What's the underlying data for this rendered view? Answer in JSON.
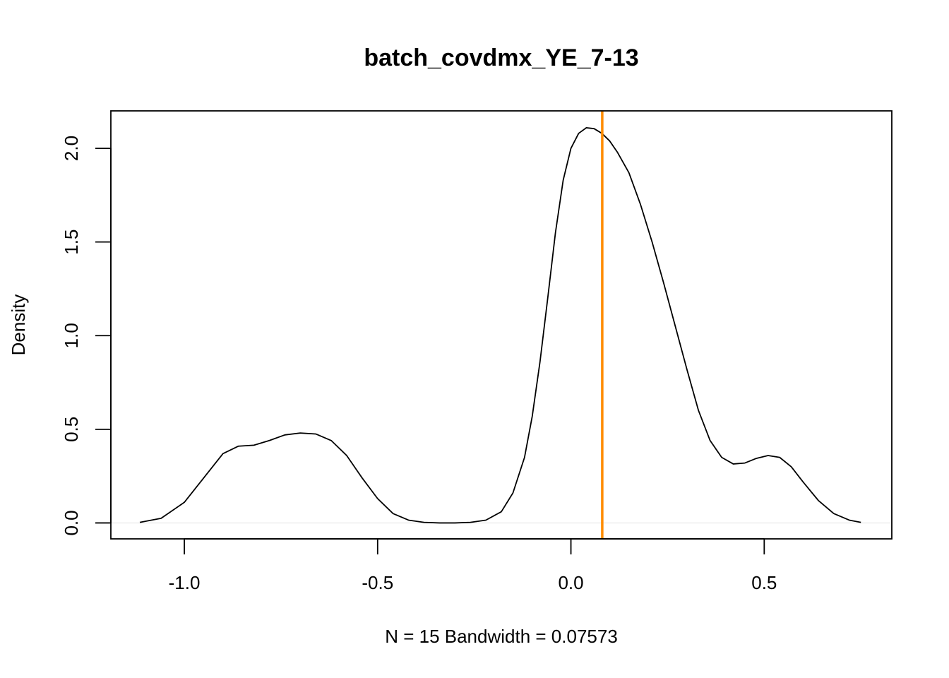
{
  "chart_data": {
    "type": "line",
    "title": "batch_covdmx_YE_7-13",
    "xlabel": "N = 15   Bandwidth = 0.07573",
    "ylabel": "Density",
    "xlim": [
      -1.19,
      0.83
    ],
    "ylim": [
      -0.085,
      2.2
    ],
    "x_ticks": [
      -1.0,
      -0.5,
      0.0,
      0.5
    ],
    "x_tick_labels": [
      "-1.0",
      "-0.5",
      "0.0",
      "0.5"
    ],
    "y_ticks": [
      0.0,
      0.5,
      1.0,
      1.5,
      2.0
    ],
    "y_tick_labels": [
      "0.0",
      "0.5",
      "1.0",
      "1.5",
      "2.0"
    ],
    "series": [
      {
        "color": "#000000",
        "x": [
          -1.115,
          -1.06,
          -1.0,
          -0.95,
          -0.9,
          -0.86,
          -0.82,
          -0.78,
          -0.74,
          -0.7,
          -0.66,
          -0.62,
          -0.58,
          -0.54,
          -0.5,
          -0.46,
          -0.42,
          -0.38,
          -0.34,
          -0.3,
          -0.26,
          -0.22,
          -0.18,
          -0.15,
          -0.12,
          -0.1,
          -0.08,
          -0.06,
          -0.04,
          -0.02,
          0.0,
          0.02,
          0.04,
          0.06,
          0.08,
          0.1,
          0.12,
          0.15,
          0.18,
          0.21,
          0.24,
          0.27,
          0.3,
          0.33,
          0.36,
          0.39,
          0.42,
          0.45,
          0.48,
          0.51,
          0.54,
          0.57,
          0.6,
          0.64,
          0.68,
          0.72,
          0.75
        ],
        "y": [
          0.003,
          0.025,
          0.11,
          0.24,
          0.37,
          0.41,
          0.415,
          0.44,
          0.47,
          0.48,
          0.475,
          0.44,
          0.36,
          0.24,
          0.13,
          0.05,
          0.015,
          0.003,
          0.0,
          0.0,
          0.003,
          0.015,
          0.06,
          0.16,
          0.35,
          0.57,
          0.86,
          1.2,
          1.55,
          1.83,
          2.0,
          2.08,
          2.11,
          2.105,
          2.08,
          2.04,
          1.98,
          1.87,
          1.7,
          1.5,
          1.28,
          1.05,
          0.82,
          0.6,
          0.44,
          0.35,
          0.315,
          0.32,
          0.345,
          0.36,
          0.35,
          0.3,
          0.22,
          0.12,
          0.05,
          0.015,
          0.003
        ]
      }
    ],
    "vline": {
      "x": 0.081,
      "color": "#ff8c00"
    },
    "hline": {
      "y": 0.0,
      "color": "#e0e0e0"
    }
  }
}
